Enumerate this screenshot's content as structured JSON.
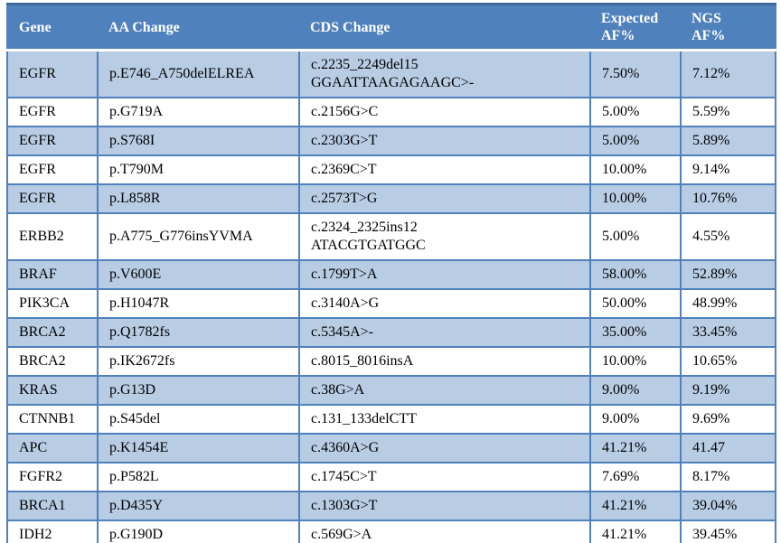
{
  "table": {
    "columns": [
      "Gene",
      "AA Change",
      "CDS Change",
      "Expected\nAF%",
      "NGS\nAF%"
    ],
    "rows": [
      {
        "gene": "EGFR",
        "aa_change": "p.E746_A750delELREA",
        "cds_change": "c.2235_2249del15\nGGAATTAAGAGAAGC>-",
        "expected_af": "7.50%",
        "ngs_af": "7.12%"
      },
      {
        "gene": "EGFR",
        "aa_change": "p.G719A",
        "cds_change": "c.2156G>C",
        "expected_af": "5.00%",
        "ngs_af": "5.59%"
      },
      {
        "gene": "EGFR",
        "aa_change": "p.S768I",
        "cds_change": "c.2303G>T",
        "expected_af": "5.00%",
        "ngs_af": "5.89%"
      },
      {
        "gene": "EGFR",
        "aa_change": "p.T790M",
        "cds_change": "c.2369C>T",
        "expected_af": "10.00%",
        "ngs_af": "9.14%"
      },
      {
        "gene": "EGFR",
        "aa_change": "p.L858R",
        "cds_change": "c.2573T>G",
        "expected_af": "10.00%",
        "ngs_af": "10.76%"
      },
      {
        "gene": "ERBB2",
        "aa_change": "p.A775_G776insYVMA",
        "cds_change": "c.2324_2325ins12\nATACGTGATGGC",
        "expected_af": "5.00%",
        "ngs_af": "4.55%"
      },
      {
        "gene": "BRAF",
        "aa_change": "p.V600E",
        "cds_change": "c.1799T>A",
        "expected_af": "58.00%",
        "ngs_af": "52.89%"
      },
      {
        "gene": "PIK3CA",
        "aa_change": "p.H1047R",
        "cds_change": "c.3140A>G",
        "expected_af": "50.00%",
        "ngs_af": "48.99%"
      },
      {
        "gene": "BRCA2",
        "aa_change": "p.Q1782fs",
        "cds_change": "c.5345A>-",
        "expected_af": "35.00%",
        "ngs_af": "33.45%"
      },
      {
        "gene": "BRCA2",
        "aa_change": "p.IK2672fs",
        "cds_change": "c.8015_8016insA",
        "expected_af": "10.00%",
        "ngs_af": "10.65%"
      },
      {
        "gene": "KRAS",
        "aa_change": "p.G13D",
        "cds_change": "c.38G>A",
        "expected_af": "9.00%",
        "ngs_af": "9.19%"
      },
      {
        "gene": "CTNNB1",
        "aa_change": "p.S45del",
        "cds_change": "c.131_133delCTT",
        "expected_af": "9.00%",
        "ngs_af": "9.69%"
      },
      {
        "gene": "APC",
        "aa_change": "p.K1454E",
        "cds_change": "c.4360A>G",
        "expected_af": "41.21%",
        "ngs_af": "41.47"
      },
      {
        "gene": "FGFR2",
        "aa_change": "p.P582L",
        "cds_change": "c.1745C>T",
        "expected_af": "7.69%",
        "ngs_af": "8.17%"
      },
      {
        "gene": "BRCA1",
        "aa_change": "p.D435Y",
        "cds_change": "c.1303G>T",
        "expected_af": "41.21%",
        "ngs_af": "39.04%"
      },
      {
        "gene": "IDH2",
        "aa_change": "p.G190D",
        "cds_change": "c.569G>A",
        "expected_af": "41.21%",
        "ngs_af": "39.45%"
      }
    ],
    "colors": {
      "header_bg": "#4F81BD",
      "header_text": "#FFFFFF",
      "band_bg": "#B8CCE4",
      "row_bg": "#FFFFFF",
      "border": "#4F81BD",
      "body_text": "#000000"
    }
  }
}
